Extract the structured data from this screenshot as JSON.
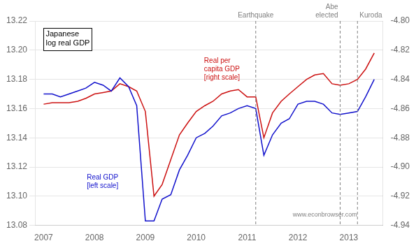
{
  "chart_data": {
    "type": "line",
    "title": "Japanese\nlog real GDP",
    "x": [
      2007.0,
      2007.17,
      2007.33,
      2007.5,
      2007.67,
      2007.83,
      2008.0,
      2008.17,
      2008.33,
      2008.5,
      2008.67,
      2008.83,
      2009.0,
      2009.17,
      2009.33,
      2009.5,
      2009.67,
      2009.83,
      2010.0,
      2010.17,
      2010.33,
      2010.5,
      2010.67,
      2010.83,
      2011.0,
      2011.17,
      2011.33,
      2011.5,
      2011.67,
      2011.83,
      2012.0,
      2012.17,
      2012.33,
      2012.5,
      2012.67,
      2012.83,
      2013.0,
      2013.17,
      2013.33,
      2013.5
    ],
    "series": [
      {
        "name": "Real GDP\n[left scale]",
        "color": "#1010cc",
        "values": [
          13.17,
          13.17,
          13.168,
          13.17,
          13.172,
          13.174,
          13.178,
          13.176,
          13.172,
          13.181,
          13.175,
          13.162,
          13.083,
          13.083,
          13.098,
          13.101,
          13.118,
          13.128,
          13.14,
          13.143,
          13.148,
          13.155,
          13.157,
          13.16,
          13.162,
          13.16,
          13.128,
          13.142,
          13.15,
          13.153,
          13.163,
          13.165,
          13.165,
          13.163,
          13.157,
          13.156,
          13.157,
          13.158,
          13.168,
          13.18
        ]
      },
      {
        "name": "Real per\ncapita GDP\n[right scale]",
        "color": "#cc1010",
        "axis": "y2",
        "values": [
          -4.857,
          -4.856,
          -4.856,
          -4.856,
          -4.855,
          -4.853,
          -4.85,
          -4.849,
          -4.848,
          -4.843,
          -4.845,
          -4.848,
          -4.862,
          -4.92,
          -4.912,
          -4.895,
          -4.878,
          -4.87,
          -4.862,
          -4.858,
          -4.855,
          -4.85,
          -4.848,
          -4.847,
          -4.852,
          -4.852,
          -4.88,
          -4.863,
          -4.855,
          -4.85,
          -4.845,
          -4.84,
          -4.837,
          -4.836,
          -4.843,
          -4.844,
          -4.843,
          -4.84,
          -4.833,
          -4.822
        ]
      }
    ],
    "xlim": [
      2006.83,
      2013.67
    ],
    "xticks": [
      2007,
      2008,
      2009,
      2010,
      2011,
      2012,
      2013
    ],
    "ylim": [
      13.08,
      13.22
    ],
    "yticks": [
      13.08,
      {
        "value": 13.1,
        "label": "13.10"
      },
      13.12,
      13.14,
      13.16,
      13.18,
      {
        "value": 13.2,
        "label": "13.20"
      },
      13.22
    ],
    "y2lim": [
      -4.94,
      -4.8
    ],
    "y2ticks": [
      -4.94,
      -4.92,
      {
        "value": -4.9,
        "label": "-4.90"
      },
      -4.88,
      -4.86,
      -4.84,
      -4.82,
      {
        "value": -4.8,
        "label": "-4.80"
      }
    ],
    "grid": "y",
    "vlines": [
      {
        "x": 2011.17,
        "label": "Earthquake"
      },
      {
        "x": 2012.83,
        "label": "Abe\nelected"
      },
      {
        "x": 2013.17,
        "label": "Kuroda"
      }
    ],
    "annotations": [
      "www.econbrowser.com"
    ]
  }
}
